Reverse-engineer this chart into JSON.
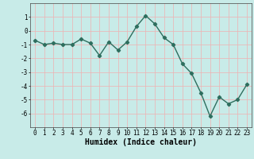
{
  "title": "",
  "xlabel": "Humidex (Indice chaleur)",
  "ylabel": "",
  "x": [
    0,
    1,
    2,
    3,
    4,
    5,
    6,
    7,
    8,
    9,
    10,
    11,
    12,
    13,
    14,
    15,
    16,
    17,
    18,
    19,
    20,
    21,
    22,
    23
  ],
  "y": [
    -0.7,
    -1.0,
    -0.9,
    -1.0,
    -1.0,
    -0.6,
    -0.9,
    -1.8,
    -0.8,
    -1.4,
    -0.8,
    0.3,
    1.1,
    0.5,
    -0.5,
    -1.0,
    -2.4,
    -3.1,
    -4.5,
    -6.2,
    -4.8,
    -5.3,
    -5.0,
    -3.9
  ],
  "line_color": "#2e6e5e",
  "marker": "D",
  "marker_size": 2.2,
  "bg_color": "#c8ebe8",
  "grid_color": "#f0b0b0",
  "ylim": [
    -7,
    2
  ],
  "xlim": [
    -0.5,
    23.5
  ],
  "yticks": [
    -6,
    -5,
    -4,
    -3,
    -2,
    -1,
    0,
    1
  ],
  "xticks": [
    0,
    1,
    2,
    3,
    4,
    5,
    6,
    7,
    8,
    9,
    10,
    11,
    12,
    13,
    14,
    15,
    16,
    17,
    18,
    19,
    20,
    21,
    22,
    23
  ],
  "tick_label_fontsize": 5.5,
  "xlabel_fontsize": 7.0,
  "linewidth": 1.0
}
